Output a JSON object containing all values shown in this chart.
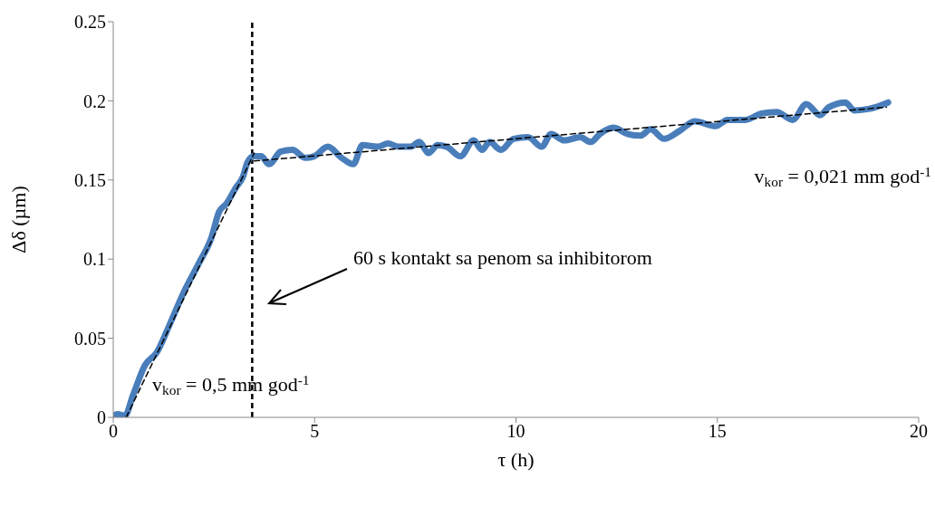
{
  "chart_data": {
    "type": "line",
    "xlabel": "τ (h)",
    "ylabel": "Δδ (µm)",
    "xlim": [
      0,
      20
    ],
    "ylim": [
      0,
      0.25
    ],
    "xticks": [
      0,
      5,
      10,
      15,
      20
    ],
    "yticks": [
      0,
      0.05,
      0.1,
      0.15,
      0.2,
      0.25
    ],
    "series": [
      {
        "color": "#4a7ebb",
        "x": [
          0,
          0.11,
          0.29,
          0.49,
          0.79,
          1.08,
          1.39,
          1.75,
          2.14,
          2.43,
          2.63,
          2.81,
          3.04,
          3.22,
          3.33,
          3.49,
          3.67,
          3.87,
          4.16,
          4.45,
          4.77,
          4.99,
          5.33,
          5.67,
          5.96,
          6.19,
          6.57,
          6.82,
          7.09,
          7.38,
          7.6,
          7.83,
          8.05,
          8.28,
          8.62,
          8.95,
          9.16,
          9.34,
          9.63,
          9.94,
          10.3,
          10.64,
          10.87,
          11.2,
          11.59,
          11.86,
          12.08,
          12.42,
          12.78,
          13.09,
          13.34,
          13.68,
          14.06,
          14.44,
          14.96,
          15.25,
          15.7,
          16.09,
          16.47,
          16.87,
          17.21,
          17.55,
          17.77,
          18.18,
          18.4,
          18.78,
          19.24
        ],
        "values": [
          0.001,
          0.002,
          0.001,
          0.014,
          0.033,
          0.041,
          0.058,
          0.079,
          0.098,
          0.113,
          0.13,
          0.135,
          0.145,
          0.152,
          0.161,
          0.165,
          0.165,
          0.16,
          0.168,
          0.169,
          0.164,
          0.165,
          0.171,
          0.164,
          0.16,
          0.172,
          0.171,
          0.173,
          0.171,
          0.171,
          0.174,
          0.167,
          0.172,
          0.171,
          0.165,
          0.175,
          0.169,
          0.174,
          0.169,
          0.176,
          0.177,
          0.171,
          0.179,
          0.175,
          0.177,
          0.174,
          0.179,
          0.183,
          0.179,
          0.178,
          0.182,
          0.176,
          0.181,
          0.187,
          0.184,
          0.188,
          0.188,
          0.192,
          0.193,
          0.188,
          0.198,
          0.191,
          0.196,
          0.199,
          0.194,
          0.195,
          0.199
        ]
      },
      {
        "type": "line",
        "color": "#000000",
        "line_style": "dashed",
        "x": [
          0.32,
          3.5
        ],
        "values": [
          0,
          0.167
        ]
      },
      {
        "type": "line",
        "color": "#000000",
        "line_style": "dashed",
        "x": [
          3.5,
          19.2
        ],
        "values": [
          0.162,
          0.196
        ]
      }
    ],
    "ref_lines": [
      {
        "axis": "x",
        "value": 3.45,
        "color": "#000000",
        "line_style": "dashed"
      }
    ],
    "annotations": [
      "60 s kontakt sa penom sa inhibitorom",
      "v$_{kor}$ = 0,5 mm god$^{-1}$",
      "v$_{kor}$ = 0,021 mm god$^{-1}$"
    ]
  }
}
